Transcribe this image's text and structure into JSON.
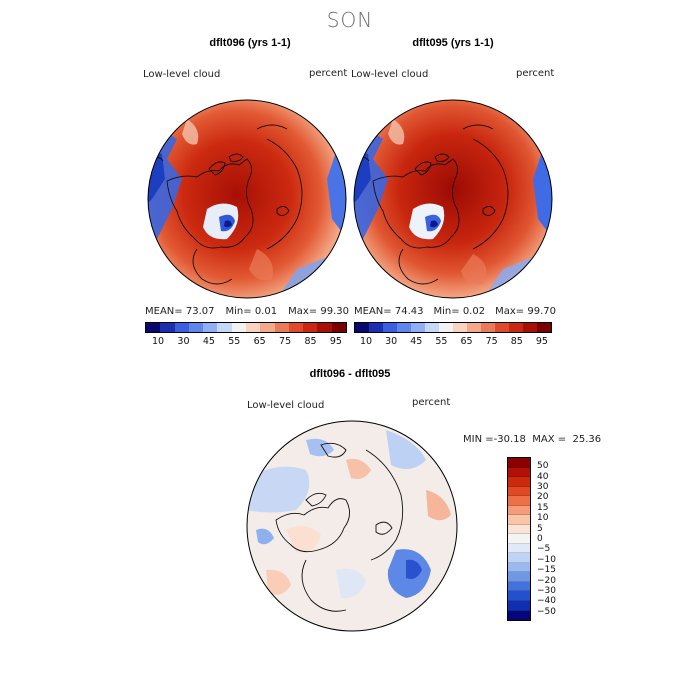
{
  "season": "SON",
  "panels": [
    {
      "title": "dflt096 (yrs 1-1)",
      "field_label": "Low-level cloud",
      "units": "percent",
      "stats": {
        "mean": "73.07",
        "min": "0.01",
        "max": "99.30"
      }
    },
    {
      "title": "dflt095 (yrs 1-1)",
      "field_label": "Low-level cloud",
      "units": "percent",
      "stats": {
        "mean": "74.43",
        "min": "0.02",
        "max": "99.70"
      }
    }
  ],
  "stat_labels": {
    "mean": "MEAN=",
    "min": "Min=",
    "max": "Max="
  },
  "abs_colorbar": {
    "colors": [
      "#08086e",
      "#1c2fb0",
      "#3a5fe0",
      "#5f86ea",
      "#8fb0f2",
      "#c4d9f8",
      "#f2f2f2",
      "#f9d2c0",
      "#f4a98a",
      "#ea7a58",
      "#dd4a2c",
      "#c92812",
      "#a80f05",
      "#7a0000"
    ],
    "tick_labels": [
      "10",
      "30",
      "45",
      "55",
      "65",
      "75",
      "85",
      "95"
    ]
  },
  "diff_panel": {
    "title": "dflt096 - dflt095",
    "field_label": "Low-level cloud",
    "units": "percent",
    "min_label": "MIN =",
    "min": "-30.18",
    "max_label": "MAX =",
    "max": "25.36"
  },
  "diff_colorbar": {
    "colors": [
      "#8b0000",
      "#b01005",
      "#cc2a0e",
      "#e04a22",
      "#ee7048",
      "#f59c7a",
      "#f8c4aa",
      "#fbe3d6",
      "#f4f4f4",
      "#dfe9f8",
      "#bfd3f4",
      "#9ab9ee",
      "#6f97e6",
      "#4472dc",
      "#2350cc",
      "#0f2fb0",
      "#06067a"
    ],
    "tick_labels": [
      "50",
      "40",
      "30",
      "20",
      "15",
      "10",
      "5",
      "0",
      "−5",
      "−10",
      "−15",
      "−20",
      "−30",
      "−40",
      "−50"
    ]
  }
}
